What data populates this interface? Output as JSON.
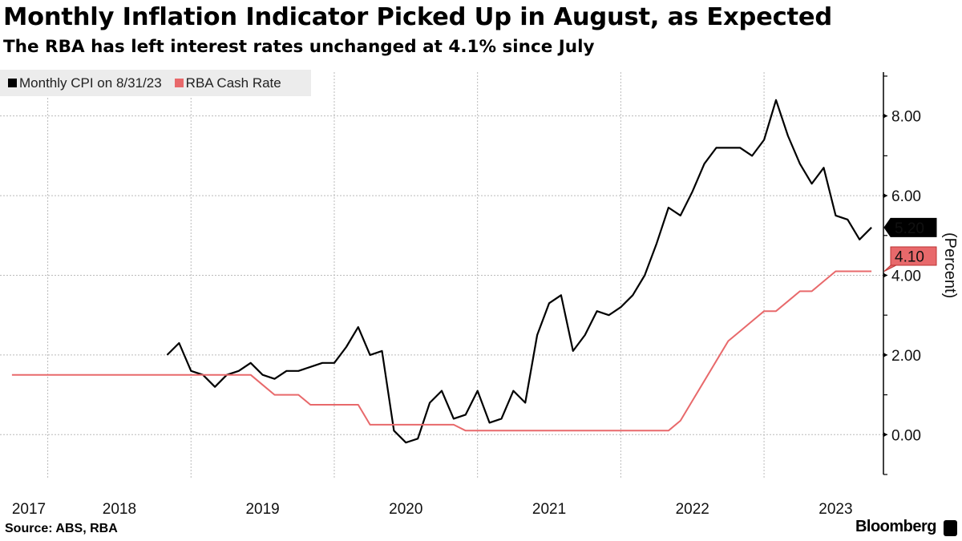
{
  "chart_data": {
    "type": "line",
    "title": "Monthly Inflation Indicator Picked Up in August, as Expected",
    "subtitle": "The RBA has left interest rates unchanged at 4.1% since July",
    "ylabel": "(Percent)",
    "xlabel": "",
    "ylim": [
      -1,
      9.1
    ],
    "xlim": [
      "2017-09",
      "2023-11"
    ],
    "y_ticks": [
      "0.00",
      "2.00",
      "4.00",
      "6.00",
      "8.00"
    ],
    "y_tick_values": [
      0,
      2,
      4,
      6,
      8
    ],
    "x_ticks": [
      "2017",
      "2018",
      "2019",
      "2020",
      "2021",
      "2022",
      "2023"
    ],
    "grid": true,
    "legend": "top-left",
    "y_axis_side": "right",
    "series": [
      {
        "name": "Monthly CPI on 8/31/23",
        "color": "#000000",
        "start": "2018-10",
        "values": [
          2.0,
          2.3,
          1.6,
          1.5,
          1.2,
          1.5,
          1.6,
          1.8,
          1.5,
          1.4,
          1.6,
          1.6,
          1.7,
          1.8,
          1.8,
          2.2,
          2.7,
          2.0,
          2.1,
          0.1,
          -0.2,
          -0.1,
          0.8,
          1.1,
          0.4,
          0.5,
          1.1,
          0.3,
          0.4,
          1.1,
          0.8,
          2.5,
          3.3,
          3.5,
          2.1,
          2.5,
          3.1,
          3.0,
          3.2,
          3.5,
          4.0,
          4.8,
          5.7,
          5.5,
          6.1,
          6.8,
          7.2,
          7.2,
          7.2,
          7.0,
          7.4,
          8.4,
          7.5,
          6.8,
          6.3,
          6.7,
          5.5,
          5.4,
          4.9,
          5.2
        ],
        "last_value_label": "5.20"
      },
      {
        "name": "RBA Cash Rate",
        "color": "#e8696b",
        "start": "2017-09",
        "values": [
          1.5,
          1.5,
          1.5,
          1.5,
          1.5,
          1.5,
          1.5,
          1.5,
          1.5,
          1.5,
          1.5,
          1.5,
          1.5,
          1.5,
          1.5,
          1.5,
          1.5,
          1.5,
          1.5,
          1.5,
          1.5,
          1.25,
          1.0,
          1.0,
          1.0,
          0.75,
          0.75,
          0.75,
          0.75,
          0.75,
          0.25,
          0.25,
          0.25,
          0.25,
          0.25,
          0.25,
          0.25,
          0.25,
          0.1,
          0.1,
          0.1,
          0.1,
          0.1,
          0.1,
          0.1,
          0.1,
          0.1,
          0.1,
          0.1,
          0.1,
          0.1,
          0.1,
          0.1,
          0.1,
          0.1,
          0.1,
          0.35,
          0.85,
          1.35,
          1.85,
          2.35,
          2.6,
          2.85,
          3.1,
          3.1,
          3.35,
          3.6,
          3.6,
          3.85,
          4.1,
          4.1,
          4.1,
          4.1
        ],
        "last_value_label": "4.10"
      }
    ]
  },
  "footer": {
    "source": "Source: ABS, RBA",
    "brand": "Bloomberg"
  }
}
